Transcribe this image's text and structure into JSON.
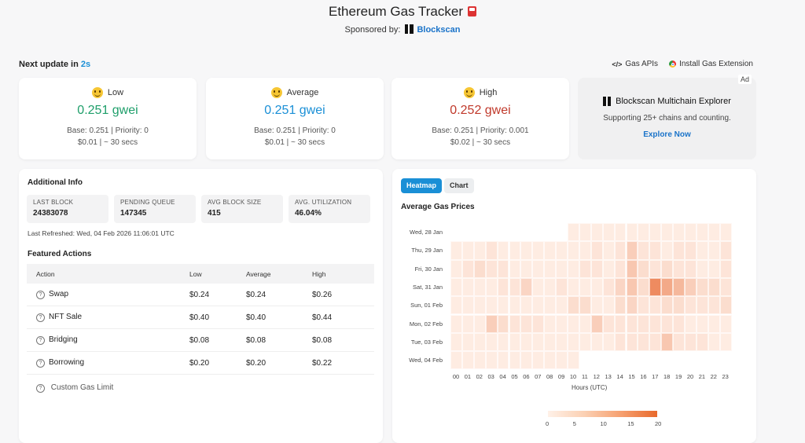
{
  "header": {
    "title": "Ethereum Gas Tracker",
    "sponsored_label": "Sponsored by:",
    "sponsor_name": "Blockscan"
  },
  "status": {
    "next_update_label": "Next update in",
    "countdown": "2s"
  },
  "top_links": {
    "gas_apis": "Gas APIs",
    "install_ext": "Install Gas Extension"
  },
  "gas_cards": [
    {
      "level": "Low",
      "price": "0.251 gwei",
      "base_priority": "Base: 0.251 | Priority: 0",
      "cost_time": "$0.01 | ~ 30 secs",
      "color": "#1e9e6a"
    },
    {
      "level": "Average",
      "price": "0.251 gwei",
      "base_priority": "Base: 0.251 | Priority: 0",
      "cost_time": "$0.01 | ~ 30 secs",
      "color": "#1a8fd6"
    },
    {
      "level": "High",
      "price": "0.252 gwei",
      "base_priority": "Base: 0.251 | Priority: 0.001",
      "cost_time": "$0.02 | ~ 30 secs",
      "color": "#c0392b"
    }
  ],
  "ad": {
    "tag": "Ad",
    "title": "Blockscan Multichain Explorer",
    "subtitle": "Supporting 25+ chains and counting.",
    "cta": "Explore Now"
  },
  "additional_info": {
    "title": "Additional Info",
    "stats": [
      {
        "label": "LAST BLOCK",
        "value": "24383078"
      },
      {
        "label": "PENDING QUEUE",
        "value": "147345"
      },
      {
        "label": "AVG BLOCK SIZE",
        "value": "415"
      },
      {
        "label": "AVG. UTILIZATION",
        "value": "46.04%"
      }
    ],
    "last_refreshed": "Last Refreshed: Wed, 04 Feb 2026 11:06:01 UTC"
  },
  "featured_actions": {
    "title": "Featured Actions",
    "columns": [
      "Action",
      "Low",
      "Average",
      "High"
    ],
    "rows": [
      {
        "action": "Swap",
        "low": "$0.24",
        "average": "$0.24",
        "high": "$0.26"
      },
      {
        "action": "NFT Sale",
        "low": "$0.40",
        "average": "$0.40",
        "high": "$0.44"
      },
      {
        "action": "Bridging",
        "low": "$0.08",
        "average": "$0.08",
        "high": "$0.08"
      },
      {
        "action": "Borrowing",
        "low": "$0.20",
        "average": "$0.20",
        "high": "$0.22"
      }
    ],
    "custom_gas_limit": "Custom Gas Limit"
  },
  "heatmap_tabs": {
    "heatmap": "Heatmap",
    "chart": "Chart"
  },
  "chart_data": {
    "type": "heatmap",
    "title": "Average Gas Prices",
    "xlabel": "Hours (UTC)",
    "ylabel": "",
    "x": [
      "00",
      "01",
      "02",
      "03",
      "04",
      "05",
      "06",
      "07",
      "08",
      "09",
      "10",
      "11",
      "12",
      "13",
      "14",
      "15",
      "16",
      "17",
      "18",
      "19",
      "20",
      "21",
      "22",
      "23"
    ],
    "y": [
      "Wed, 28 Jan",
      "Thu, 29 Jan",
      "Fri, 30 Jan",
      "Sat, 31 Jan",
      "Sun, 01 Feb",
      "Mon, 02 Feb",
      "Tue, 03 Feb",
      "Wed, 04 Feb"
    ],
    "values": [
      [
        null,
        null,
        null,
        null,
        null,
        null,
        null,
        null,
        null,
        null,
        1,
        1,
        1,
        1,
        1,
        1,
        1,
        1,
        1,
        1,
        1,
        1,
        1,
        1
      ],
      [
        1,
        1,
        1,
        2,
        1,
        1,
        1,
        1,
        1,
        1,
        1,
        1,
        2,
        1,
        2,
        5,
        2,
        2,
        1,
        2,
        2,
        1,
        1,
        2
      ],
      [
        1,
        2,
        3,
        2,
        2,
        1,
        1,
        1,
        1,
        1,
        1,
        2,
        2,
        1,
        2,
        6,
        3,
        2,
        3,
        2,
        2,
        1,
        1,
        2
      ],
      [
        1,
        1,
        1,
        1,
        2,
        2,
        4,
        1,
        1,
        2,
        1,
        1,
        1,
        2,
        4,
        6,
        3,
        14,
        10,
        8,
        5,
        3,
        3,
        2
      ],
      [
        1,
        1,
        1,
        1,
        1,
        1,
        1,
        1,
        1,
        1,
        3,
        3,
        1,
        1,
        3,
        4,
        2,
        2,
        3,
        3,
        2,
        2,
        2,
        3
      ],
      [
        1,
        1,
        1,
        5,
        3,
        2,
        2,
        2,
        1,
        1,
        1,
        1,
        5,
        2,
        2,
        2,
        2,
        2,
        2,
        2,
        1,
        1,
        1,
        1
      ],
      [
        1,
        1,
        1,
        1,
        1,
        1,
        1,
        1,
        1,
        1,
        1,
        1,
        1,
        1,
        2,
        2,
        2,
        2,
        6,
        2,
        2,
        2,
        1,
        1
      ],
      [
        1,
        1,
        1,
        1,
        1,
        1,
        1,
        1,
        1,
        1,
        1,
        null,
        null,
        null,
        null,
        null,
        null,
        null,
        null,
        null,
        null,
        null,
        null,
        null
      ]
    ],
    "colorbar": {
      "min": 0,
      "max": 20,
      "ticks": [
        0,
        5,
        10,
        15,
        20
      ]
    }
  }
}
